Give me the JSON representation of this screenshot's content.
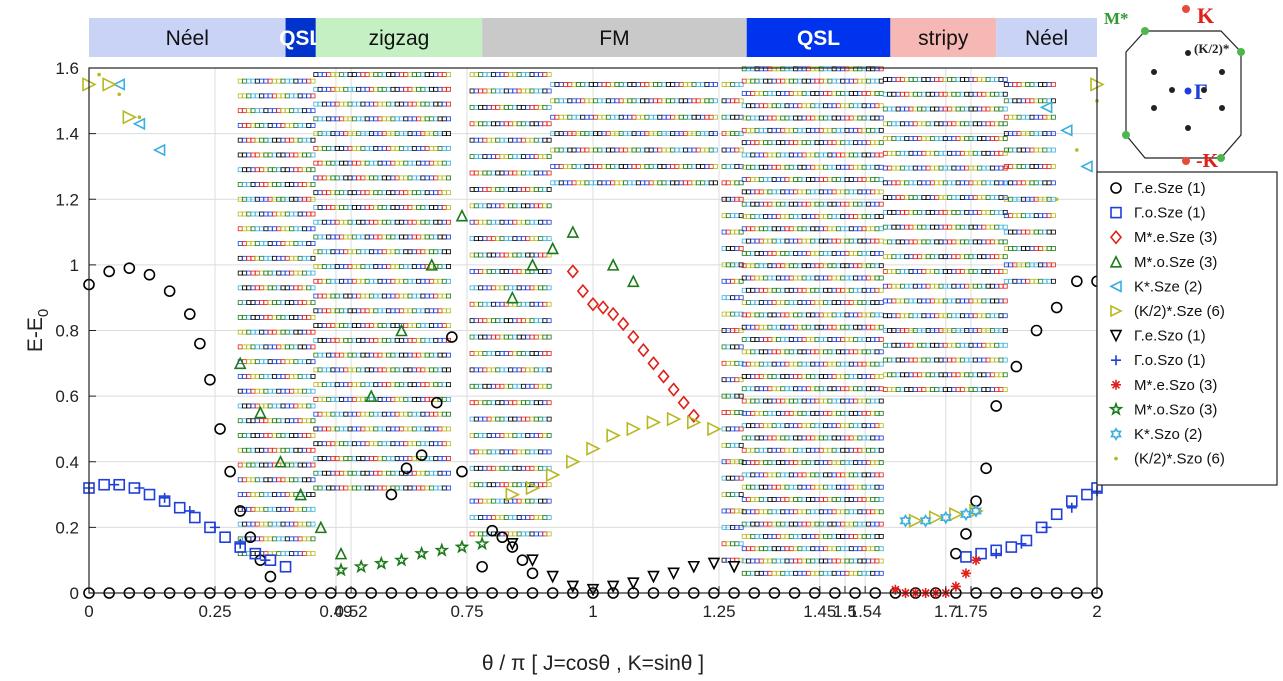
{
  "chart_data": {
    "type": "scatter",
    "title": "",
    "xlabel": "θ / π [ J=cosθ , K=sinθ ]",
    "ylabel": "E-E0",
    "xlim": [
      0,
      2
    ],
    "ylim": [
      0,
      1.6
    ],
    "grid": true,
    "x_ticks": [
      0,
      0.25,
      0.49,
      0.52,
      0.75,
      1,
      1.25,
      1.45,
      1.5,
      1.54,
      1.7,
      1.75,
      2
    ],
    "x_tick_labels": [
      "0",
      "0.25",
      "0.49",
      "0.52",
      "0.75",
      "1",
      "1.25",
      "1.45",
      "1.5",
      "1.54",
      "1.7",
      "1.75",
      "2"
    ],
    "y_ticks": [
      0,
      0.2,
      0.4,
      0.6,
      0.8,
      1.0,
      1.2,
      1.4,
      1.6
    ],
    "y_tick_labels": [
      "0",
      "0.2",
      "0.4",
      "0.6",
      "0.8",
      "1",
      "1.2",
      "1.4",
      "1.6"
    ],
    "phases": [
      {
        "label": "Néel",
        "start": 0,
        "end": 0.39,
        "color": "#c9d3f5",
        "text_color": "#111111"
      },
      {
        "label": "QSL",
        "start": 0.39,
        "end": 0.45,
        "color": "#0033cc",
        "text_color": "#ffffff",
        "bold": true
      },
      {
        "label": "zigzag",
        "start": 0.45,
        "end": 0.78,
        "color": "#c5f0c3",
        "text_color": "#111111"
      },
      {
        "label": "FM",
        "start": 0.78,
        "end": 1.305,
        "color": "#c9c9c9",
        "text_color": "#111111"
      },
      {
        "label": "QSL",
        "start": 1.305,
        "end": 1.59,
        "color": "#0033ee",
        "text_color": "#ffffff",
        "bold": true
      },
      {
        "label": "stripy",
        "start": 1.59,
        "end": 1.8,
        "color": "#f5b8b4",
        "text_color": "#111111"
      },
      {
        "label": "Néel",
        "start": 1.8,
        "end": 2,
        "color": "#c9d3f5",
        "text_color": "#111111"
      }
    ],
    "legend_position": "right",
    "series": [
      {
        "name": "Γ.e.Sze (1)",
        "marker": "circle",
        "color": "#000000",
        "x": [
          0,
          0.04,
          0.08,
          0.12,
          0.16,
          0.2,
          0.24,
          0.28,
          0.32,
          0.36,
          0.4,
          0.44,
          0.48,
          0.52,
          0.56,
          0.6,
          0.64,
          0.68,
          0.72,
          0.76,
          0.8,
          0.84,
          0.88,
          0.92,
          0.96,
          1.0,
          1.04,
          1.08,
          1.12,
          1.16,
          1.2,
          1.24,
          1.28,
          1.32,
          1.36,
          1.4,
          1.44,
          1.48,
          1.52,
          1.56,
          1.6,
          1.64,
          1.68,
          1.72,
          1.76,
          1.8,
          1.84,
          1.88,
          1.92,
          1.96,
          2.0
        ],
        "y": [
          0,
          0,
          0,
          0,
          0,
          0,
          0,
          0,
          0,
          0,
          0,
          0,
          0,
          0,
          0,
          0,
          0,
          0,
          0,
          0,
          0,
          0,
          0,
          0,
          0,
          0,
          0,
          0,
          0,
          0,
          0,
          0,
          0,
          0,
          0,
          0,
          0,
          0,
          0,
          0,
          0,
          0,
          0,
          0,
          0,
          0,
          0,
          0,
          0,
          0,
          0
        ]
      },
      {
        "name": "Γ.e.Sze (1) excited",
        "marker": "circle",
        "color": "#000000",
        "legend": false,
        "x": [
          0,
          0.04,
          0.08,
          0.12,
          0.16,
          0.2,
          0.22,
          0.24,
          0.26,
          0.28,
          0.3,
          0.32,
          0.34,
          0.36,
          0.6,
          0.63,
          0.66,
          0.69,
          0.72,
          0.74,
          0.78,
          0.8,
          0.82,
          0.84,
          0.86,
          0.88,
          1.72,
          1.74,
          1.76,
          1.78,
          1.8,
          1.84,
          1.88,
          1.92,
          1.96,
          2.0
        ],
        "y": [
          0.94,
          0.98,
          0.99,
          0.97,
          0.92,
          0.85,
          0.76,
          0.65,
          0.5,
          0.37,
          0.25,
          0.17,
          0.1,
          0.05,
          0.3,
          0.38,
          0.42,
          0.58,
          0.78,
          0.37,
          0.08,
          0.19,
          0.17,
          0.14,
          0.1,
          0.06,
          0.12,
          0.18,
          0.28,
          0.38,
          0.57,
          0.69,
          0.8,
          0.87,
          0.95,
          0.95
        ]
      },
      {
        "name": "Γ.o.Sze (1)",
        "marker": "square",
        "color": "#1f3fd8",
        "x": [
          0,
          0.03,
          0.06,
          0.09,
          0.12,
          0.15,
          0.18,
          0.21,
          0.24,
          0.27,
          0.3,
          0.33,
          0.36,
          0.39,
          1.74,
          1.77,
          1.8,
          1.83,
          1.86,
          1.89,
          1.92,
          1.95,
          1.98,
          2.0
        ],
        "y": [
          0.32,
          0.33,
          0.33,
          0.32,
          0.3,
          0.28,
          0.26,
          0.23,
          0.2,
          0.17,
          0.14,
          0.12,
          0.1,
          0.08,
          0.11,
          0.12,
          0.13,
          0.14,
          0.16,
          0.2,
          0.24,
          0.28,
          0.3,
          0.32
        ]
      },
      {
        "name": "M*.e.Sze (3)",
        "marker": "diamond",
        "color": "#e0201a",
        "x": [
          0.96,
          0.98,
          1.0,
          1.02,
          1.04,
          1.06,
          1.08,
          1.1,
          1.12,
          1.14,
          1.16,
          1.18,
          1.2
        ],
        "y": [
          0.98,
          0.92,
          0.88,
          0.87,
          0.85,
          0.82,
          0.78,
          0.74,
          0.7,
          0.66,
          0.62,
          0.58,
          0.54
        ]
      },
      {
        "name": "M*.o.Sze (3)",
        "marker": "triangle-up",
        "color": "#1a7a1a",
        "x": [
          0.3,
          0.34,
          0.38,
          0.42,
          0.46,
          0.5,
          0.56,
          0.62,
          0.68,
          0.74,
          0.84,
          0.88,
          0.92,
          0.96,
          1.04,
          1.08
        ],
        "y": [
          0.7,
          0.55,
          0.4,
          0.3,
          0.2,
          0.12,
          0.6,
          0.8,
          1.0,
          1.15,
          0.9,
          1.0,
          1.05,
          1.1,
          1.0,
          0.95
        ]
      },
      {
        "name": "K*.Sze (2)",
        "marker": "triangle-left",
        "color": "#3aaee0",
        "x": [
          0.06,
          0.1,
          0.14,
          1.9,
          1.94,
          1.98
        ],
        "y": [
          1.55,
          1.43,
          1.35,
          1.48,
          1.41,
          1.3
        ]
      },
      {
        "name": "(K/2)*.Sze (6)",
        "marker": "triangle-right",
        "color": "#b8b820",
        "x": [
          0,
          0.04,
          0.08,
          0.84,
          0.88,
          0.92,
          0.96,
          1.0,
          1.04,
          1.08,
          1.12,
          1.16,
          1.2,
          1.24,
          1.64,
          1.68,
          1.72,
          1.76,
          2.0
        ],
        "y": [
          1.55,
          1.55,
          1.45,
          0.3,
          0.32,
          0.36,
          0.4,
          0.44,
          0.48,
          0.5,
          0.52,
          0.53,
          0.52,
          0.5,
          0.22,
          0.23,
          0.24,
          0.25,
          1.55
        ]
      },
      {
        "name": "Γ.e.Szo (1)",
        "marker": "triangle-down",
        "color": "#000000",
        "x": [
          0.84,
          0.88,
          0.92,
          0.96,
          1.0,
          1.04,
          1.08,
          1.12,
          1.16,
          1.2,
          1.24,
          1.28
        ],
        "y": [
          0.15,
          0.1,
          0.05,
          0.02,
          0.01,
          0.02,
          0.03,
          0.05,
          0.06,
          0.08,
          0.09,
          0.08
        ]
      },
      {
        "name": "Γ.o.Szo (1)",
        "marker": "plus",
        "color": "#1f3fd8",
        "x": [
          0.0,
          0.05,
          0.1,
          0.15,
          0.2,
          0.25,
          0.3,
          0.35,
          1.8,
          1.85,
          1.9,
          1.95,
          2.0
        ],
        "y": [
          0.32,
          0.33,
          0.32,
          0.29,
          0.25,
          0.2,
          0.15,
          0.1,
          0.12,
          0.15,
          0.2,
          0.26,
          0.31
        ]
      },
      {
        "name": "M*.e.Szo (3)",
        "marker": "asterisk",
        "color": "#e0201a",
        "x": [
          1.6,
          1.62,
          1.64,
          1.66,
          1.68,
          1.7,
          1.72,
          1.74,
          1.76
        ],
        "y": [
          0.01,
          0.0,
          0.0,
          0.0,
          0.0,
          0.0,
          0.02,
          0.06,
          0.1
        ]
      },
      {
        "name": "M*.o.Szo (3)",
        "marker": "star",
        "color": "#1a7a1a",
        "x": [
          0.5,
          0.54,
          0.58,
          0.62,
          0.66,
          0.7,
          0.74,
          0.78
        ],
        "y": [
          0.07,
          0.08,
          0.09,
          0.1,
          0.12,
          0.13,
          0.14,
          0.15
        ]
      },
      {
        "name": "K*.Szo (2)",
        "marker": "hexagram",
        "color": "#3aaee0",
        "x": [
          1.62,
          1.66,
          1.7,
          1.74,
          1.76
        ],
        "y": [
          0.22,
          0.22,
          0.23,
          0.24,
          0.25
        ]
      },
      {
        "name": "(K/2)*.Szo (6)",
        "marker": "dot",
        "color": "#b8b820",
        "x": [
          0.02,
          0.06,
          0.1,
          1.92,
          1.96,
          2.0
        ],
        "y": [
          1.58,
          1.52,
          1.45,
          1.2,
          1.35,
          1.5
        ]
      }
    ]
  },
  "bz": {
    "labels": {
      "m": "M*",
      "k": "K",
      "k2": "(K/2)*",
      "gamma": "Γ",
      "mk": "-K"
    }
  },
  "legend": {
    "items": [
      {
        "label": "Γ.e.Sze (1)",
        "marker": "circle",
        "color": "#000000"
      },
      {
        "label": "Γ.o.Sze (1)",
        "marker": "square",
        "color": "#1f3fd8"
      },
      {
        "label": "M*.e.Sze (3)",
        "marker": "diamond",
        "color": "#e0201a"
      },
      {
        "label": "M*.o.Sze (3)",
        "marker": "triangle-up",
        "color": "#1a7a1a"
      },
      {
        "label": "K*.Sze (2)",
        "marker": "triangle-left",
        "color": "#3aaee0"
      },
      {
        "label": "(K/2)*.Sze (6)",
        "marker": "triangle-right",
        "color": "#b8b820"
      },
      {
        "label": "Γ.e.Szo (1)",
        "marker": "triangle-down",
        "color": "#000000"
      },
      {
        "label": "Γ.o.Szo (1)",
        "marker": "plus",
        "color": "#1f3fd8"
      },
      {
        "label": "M*.e.Szo (3)",
        "marker": "asterisk",
        "color": "#e0201a"
      },
      {
        "label": "M*.o.Szo (3)",
        "marker": "star",
        "color": "#1a7a1a"
      },
      {
        "label": "K*.Szo (2)",
        "marker": "hexagram",
        "color": "#3aaee0"
      },
      {
        "label": "(K/2)*.Szo (6)",
        "marker": "dot",
        "color": "#b8b820"
      }
    ]
  }
}
